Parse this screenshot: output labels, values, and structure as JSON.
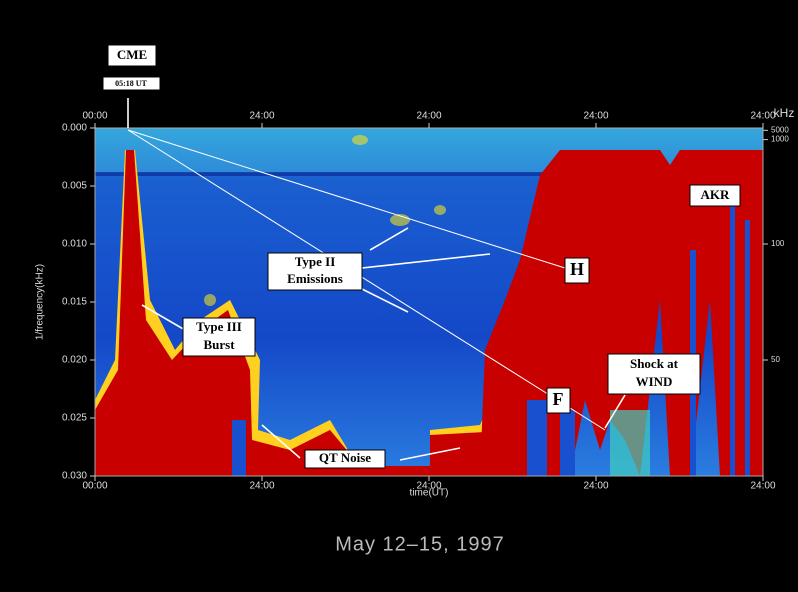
{
  "chart_data": {
    "type": "spectrogram",
    "caption": "May 12–15, 1997",
    "y_label": "1/frequency(kHz)",
    "x_label": "time(UT)",
    "y2_label": "kHz",
    "ylim": [
      0,
      0.03
    ],
    "yticks": [
      {
        "value": 0,
        "label": "0.000"
      },
      {
        "value": 0.005,
        "label": "0.005"
      },
      {
        "value": 0.01,
        "label": "0.010"
      },
      {
        "value": 0.015,
        "label": "0.015"
      },
      {
        "value": 0.02,
        "label": "0.020"
      },
      {
        "value": 0.025,
        "label": "0.025"
      },
      {
        "value": 0.03,
        "label": "0.030"
      }
    ],
    "y2ticks": [
      5000,
      1000,
      100,
      50
    ],
    "xlim": [
      0,
      96
    ],
    "xticks": [
      {
        "value": 0,
        "label": "00:00"
      },
      {
        "value": 24,
        "label": "24:00"
      },
      {
        "value": 48,
        "label": "24:00"
      },
      {
        "value": 72,
        "label": "24:00"
      },
      {
        "value": 96,
        "label": "24:00"
      }
    ],
    "annotations": {
      "cme": "CME",
      "cme_time": "05:18 UT",
      "type2": [
        "Type II",
        "Emissions"
      ],
      "type3": [
        "Type III",
        "Burst"
      ],
      "qt": "QT Noise",
      "h": "H",
      "f": "F",
      "shock": [
        "Shock at",
        "WIND"
      ],
      "akr": "AKR"
    }
  }
}
